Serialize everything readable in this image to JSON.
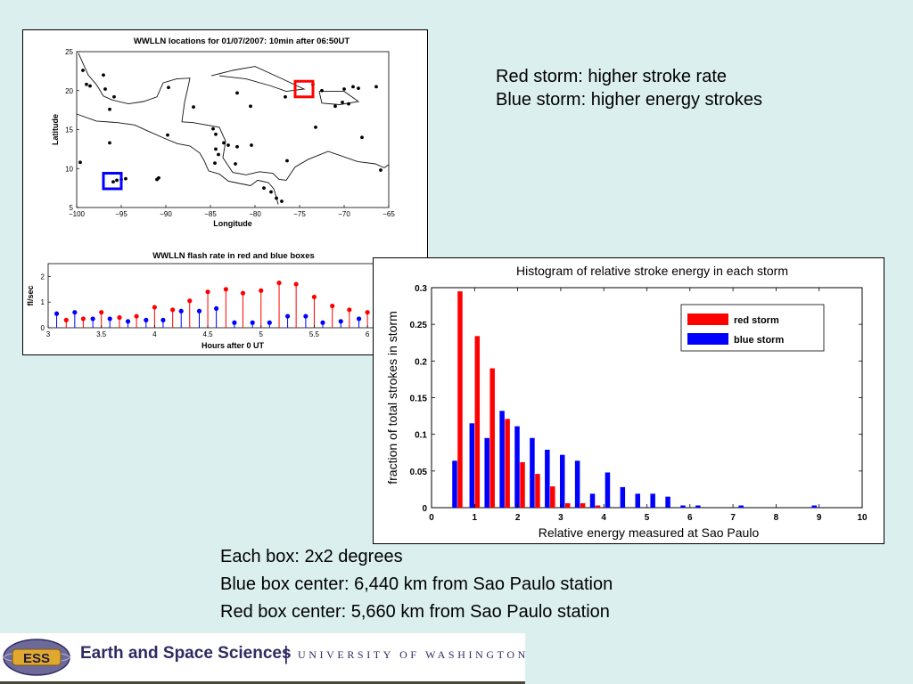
{
  "notes_top": {
    "line1": "Red storm: higher stroke rate",
    "line2": "Blue storm: higher energy strokes"
  },
  "notes_bottom": {
    "line1": "Each box: 2x2 degrees",
    "line2": "Blue box center: 6,440 km from Sao Paulo station",
    "line3": "Red box center: 5,660 km from Sao Paulo station"
  },
  "footer": {
    "logo_text": "ESS",
    "department": "Earth and Space Sciences",
    "separator": "|",
    "university": "UNIVERSITY OF WASHINGTON"
  },
  "colors": {
    "red": "#ff0000",
    "blue": "#0000ff",
    "background": "#dcefef",
    "footer_text": "#2e2b63"
  },
  "chart_data": [
    {
      "type": "scatter",
      "title": "WWLLN locations for 01/07/2007: 10min after 06:50UT",
      "xlabel": "Longitude",
      "ylabel": "Latitude",
      "xlim": [
        -100,
        -65
      ],
      "ylim": [
        5,
        25
      ],
      "xticks": [
        -100,
        -95,
        -90,
        -85,
        -80,
        -75,
        -70,
        -65
      ],
      "yticks": [
        5,
        10,
        15,
        20,
        25
      ],
      "xtick_labels": [
        "−100",
        "−95",
        "−90",
        "−85",
        "−80",
        "−75",
        "−70",
        "−65"
      ],
      "ytick_labels": [
        "5",
        "10",
        "15",
        "20",
        "25"
      ],
      "points": [
        [
          -99.3,
          22.6
        ],
        [
          -98.9,
          20.8
        ],
        [
          -98.5,
          20.6
        ],
        [
          -97.0,
          22.0
        ],
        [
          -96.8,
          20.2
        ],
        [
          -95.8,
          19.2
        ],
        [
          -96.3,
          13.3
        ],
        [
          -99.6,
          10.8
        ],
        [
          -96.3,
          17.6
        ],
        [
          -95.9,
          8.3
        ],
        [
          -95.5,
          8.5
        ],
        [
          -95.0,
          8.6
        ],
        [
          -94.5,
          8.7
        ],
        [
          -91.0,
          8.6
        ],
        [
          -90.8,
          8.8
        ],
        [
          -89.8,
          14.3
        ],
        [
          -89.7,
          20.4
        ],
        [
          -86.9,
          17.9
        ],
        [
          -84.7,
          15.1
        ],
        [
          -84.4,
          14.4
        ],
        [
          -84.4,
          12.5
        ],
        [
          -84.1,
          11.8
        ],
        [
          -84.5,
          10.7
        ],
        [
          -83.5,
          13.3
        ],
        [
          -83.0,
          13.0
        ],
        [
          -82.0,
          12.8
        ],
        [
          -82.2,
          10.6
        ],
        [
          -82.0,
          19.7
        ],
        [
          -80.5,
          18.0
        ],
        [
          -80.4,
          13.0
        ],
        [
          -79.0,
          7.5
        ],
        [
          -78.2,
          7.0
        ],
        [
          -77.6,
          6.2
        ],
        [
          -77.0,
          5.8
        ],
        [
          -76.4,
          11.0
        ],
        [
          -76.6,
          19.2
        ],
        [
          -73.5,
          20.8
        ],
        [
          -72.5,
          20.0
        ],
        [
          -70.0,
          20.2
        ],
        [
          -69.0,
          20.5
        ],
        [
          -68.4,
          20.3
        ],
        [
          -70.2,
          18.5
        ],
        [
          -69.5,
          18.3
        ],
        [
          -71.0,
          18.0
        ],
        [
          -66.4,
          20.5
        ],
        [
          -73.2,
          15.3
        ],
        [
          -68.0,
          14.0
        ],
        [
          -65.9,
          9.8
        ]
      ],
      "coastlines": [
        [
          [
            -99.8,
            24.8
          ],
          [
            -98.7,
            22.0
          ],
          [
            -97.8,
            20.8
          ],
          [
            -97.0,
            19.3
          ],
          [
            -96.0,
            18.8
          ],
          [
            -94.2,
            18.3
          ],
          [
            -92.5,
            18.6
          ],
          [
            -91.0,
            19.2
          ],
          [
            -90.3,
            21.0
          ],
          [
            -88.8,
            21.5
          ],
          [
            -87.3,
            21.6
          ],
          [
            -87.6,
            20.0
          ],
          [
            -87.9,
            18.5
          ],
          [
            -88.2,
            16.0
          ],
          [
            -87.0,
            15.9
          ],
          [
            -84.0,
            15.3
          ],
          [
            -83.3,
            13.5
          ],
          [
            -83.6,
            11.4
          ],
          [
            -82.5,
            9.5
          ],
          [
            -81.0,
            9.2
          ],
          [
            -79.5,
            9.6
          ],
          [
            -78.0,
            9.4
          ],
          [
            -77.3,
            8.6
          ],
          [
            -76.5,
            8.5
          ],
          [
            -75.5,
            10.2
          ],
          [
            -74.0,
            11.2
          ],
          [
            -71.8,
            12.2
          ],
          [
            -70.5,
            11.7
          ],
          [
            -68.5,
            10.9
          ],
          [
            -66.5,
            10.6
          ],
          [
            -65.5,
            10.1
          ],
          [
            -65.0,
            10.5
          ]
        ],
        [
          [
            -100.0,
            17.0
          ],
          [
            -97.8,
            16.1
          ],
          [
            -95.5,
            15.9
          ],
          [
            -93.5,
            15.6
          ],
          [
            -92.0,
            14.8
          ],
          [
            -90.2,
            13.9
          ],
          [
            -88.7,
            13.2
          ],
          [
            -87.3,
            12.9
          ],
          [
            -86.2,
            12.0
          ],
          [
            -85.7,
            11.0
          ],
          [
            -85.2,
            9.7
          ],
          [
            -84.0,
            9.3
          ],
          [
            -83.0,
            8.4
          ],
          [
            -82.2,
            8.2
          ],
          [
            -80.5,
            7.8
          ],
          [
            -79.7,
            8.5
          ],
          [
            -78.5,
            8.2
          ],
          [
            -77.9,
            7.4
          ],
          [
            -77.6,
            6.3
          ],
          [
            -77.4,
            5.4
          ]
        ],
        [
          [
            -84.9,
            21.9
          ],
          [
            -82.5,
            22.6
          ],
          [
            -80.0,
            23.1
          ],
          [
            -77.5,
            21.8
          ],
          [
            -74.5,
            20.2
          ],
          [
            -76.5,
            19.9
          ],
          [
            -78.2,
            20.6
          ],
          [
            -81.0,
            21.5
          ],
          [
            -84.0,
            21.9
          ]
        ],
        [
          [
            -72.8,
            19.9
          ],
          [
            -70.0,
            19.9
          ],
          [
            -68.4,
            18.6
          ],
          [
            -70.5,
            18.2
          ],
          [
            -72.5,
            18.4
          ],
          [
            -72.8,
            19.9
          ]
        ]
      ],
      "boxes": [
        {
          "color": "red",
          "lon": [
            -75.5,
            -73.5
          ],
          "lat": [
            19.2,
            21.2
          ]
        },
        {
          "color": "blue",
          "lon": [
            -97.0,
            -95.0
          ],
          "lat": [
            7.4,
            9.4
          ]
        }
      ]
    },
    {
      "type": "stem",
      "title": "WWLLN flash rate in red and blue boxes",
      "xlabel": "Hours after 0 UT",
      "ylabel": "fl/sec",
      "xlim": [
        3,
        6.2
      ],
      "ylim": [
        0,
        2.5
      ],
      "xticks": [
        3,
        3.5,
        4,
        4.5,
        5,
        5.5,
        6
      ],
      "xtick_labels": [
        "3",
        "3.5",
        "4",
        "4.5",
        "5",
        "5.5",
        "6"
      ],
      "yticks": [
        0,
        1,
        2
      ],
      "ytick_labels": [
        "0",
        "1",
        "2"
      ],
      "series": [
        {
          "color": "red",
          "x": [
            3.17,
            3.33,
            3.5,
            3.67,
            3.83,
            4.0,
            4.17,
            4.33,
            4.5,
            4.67,
            4.83,
            5.0,
            5.17,
            5.33,
            5.5,
            5.67,
            5.83,
            6.0
          ],
          "values": [
            0.3,
            0.35,
            0.6,
            0.4,
            0.45,
            0.8,
            0.7,
            1.05,
            1.4,
            1.5,
            1.35,
            1.45,
            1.75,
            1.7,
            1.2,
            0.85,
            0.7,
            0.6
          ]
        },
        {
          "color": "blue",
          "x": [
            3.08,
            3.25,
            3.42,
            3.58,
            3.75,
            3.92,
            4.08,
            4.25,
            4.42,
            4.58,
            4.75,
            4.92,
            5.08,
            5.25,
            5.42,
            5.58,
            5.75,
            5.92
          ],
          "values": [
            0.55,
            0.6,
            0.35,
            0.35,
            0.25,
            0.3,
            0.3,
            0.65,
            0.65,
            0.75,
            0.2,
            0.2,
            0.2,
            0.45,
            0.45,
            0.2,
            0.25,
            0.35
          ]
        }
      ]
    },
    {
      "type": "bar",
      "title": "Histogram of relative stroke energy in each storm",
      "xlabel": "Relative energy measured at Sao Paulo",
      "ylabel": "fraction of total strokes in storm",
      "xlim": [
        0,
        10
      ],
      "ylim": [
        0,
        0.3
      ],
      "xticks": [
        0,
        1,
        2,
        3,
        4,
        5,
        6,
        7,
        8,
        9,
        10
      ],
      "xtick_labels": [
        "0",
        "1",
        "2",
        "3",
        "4",
        "5",
        "6",
        "7",
        "8",
        "9",
        "10"
      ],
      "yticks": [
        0,
        0.05,
        0.1,
        0.15,
        0.2,
        0.25,
        0.3
      ],
      "ytick_labels": [
        "0",
        "0.05",
        "0.1",
        "0.15",
        "0.2",
        "0.25",
        "0.3"
      ],
      "bin_centers": [
        0.6,
        1.0,
        1.35,
        1.7,
        2.05,
        2.4,
        2.75,
        3.1,
        3.45,
        3.8,
        4.15,
        4.5,
        4.85,
        5.2,
        5.55,
        5.9,
        6.25,
        7.25,
        8.95
      ],
      "legend": {
        "entries": [
          "red storm",
          "blue storm"
        ],
        "position": "top-right"
      },
      "series": [
        {
          "name": "red storm",
          "color": "red",
          "values": [
            0.295,
            0.234,
            0.19,
            0.121,
            0.062,
            0.046,
            0.029,
            0.006,
            0.006,
            0.003,
            0,
            0,
            0,
            0,
            0,
            0,
            0,
            0,
            0
          ]
        },
        {
          "name": "blue storm",
          "color": "blue",
          "values": [
            0.064,
            0.115,
            0.095,
            0.132,
            0.111,
            0.095,
            0.079,
            0.072,
            0.064,
            0.019,
            0.048,
            0.028,
            0.019,
            0.019,
            0.015,
            0.003,
            0.003,
            0.003,
            0.003
          ]
        }
      ]
    }
  ]
}
